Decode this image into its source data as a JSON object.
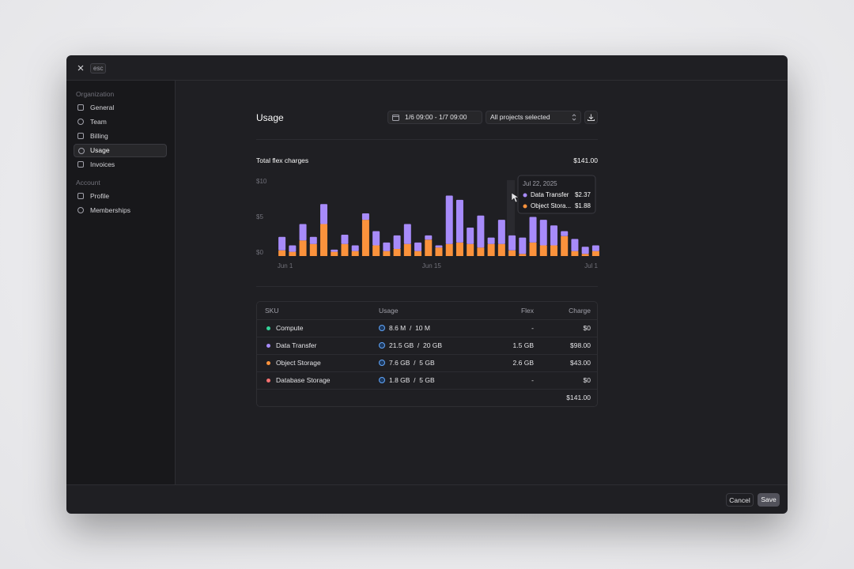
{
  "top_bar": {
    "esc": "esc"
  },
  "sidebar": {
    "sections": [
      {
        "heading": "Organization",
        "items": [
          "General",
          "Team",
          "Billing",
          "Usage",
          "Invoices"
        ]
      },
      {
        "heading": "Account",
        "items": [
          "Profile",
          "Memberships"
        ]
      }
    ],
    "active": "Usage"
  },
  "header": {
    "title": "Usage",
    "date_range": "1/6 09:00 - 1/7 09:00",
    "project_filter": "All projects selected"
  },
  "summary": {
    "label": "Total flex charges",
    "total": "$141.00"
  },
  "chart_data": {
    "type": "bar",
    "stacked": true,
    "categories": [
      "Jun 1",
      null,
      null,
      null,
      null,
      null,
      null,
      null,
      null,
      null,
      null,
      null,
      null,
      null,
      "Jun 15",
      null,
      null,
      null,
      null,
      null,
      null,
      null,
      null,
      null,
      null,
      null,
      null,
      null,
      null,
      null,
      "Jul 1"
    ],
    "series": [
      {
        "color": "#fb923c",
        "values": [
          0.8,
          0.6,
          2.2,
          1.7,
          4.5,
          0.6,
          1.7,
          0.7,
          5.1,
          1.5,
          0.7,
          1.0,
          1.7,
          0.7,
          2.3,
          1.2,
          1.7,
          1.9,
          1.7,
          1.2,
          1.7,
          1.7,
          0.8,
          0.3,
          1.9,
          1.5,
          1.5,
          2.8,
          0.7,
          0.3,
          0.7
        ]
      },
      {
        "color": "#a78bfa",
        "values": [
          1.9,
          0.9,
          2.3,
          1.0,
          2.8,
          0.3,
          1.3,
          0.8,
          0.9,
          2.0,
          1.2,
          1.9,
          2.8,
          1.2,
          0.6,
          0.3,
          6.8,
          6.0,
          2.3,
          4.5,
          0.9,
          3.4,
          2.1,
          2.3,
          3.6,
          3.6,
          2.8,
          0.7,
          1.7,
          1.0,
          0.8
        ]
      }
    ],
    "ylim": [
      0,
      10
    ],
    "yticks": [
      {
        "value": 0,
        "label": "$0"
      },
      {
        "value": 5,
        "label": "$5"
      },
      {
        "value": 10,
        "label": "$10"
      }
    ],
    "grid": false
  },
  "tooltip": {
    "date": "Jul 22, 2025",
    "items": [
      {
        "name": "Data Transfer",
        "color": "#a78bfa",
        "value": "$2.37"
      },
      {
        "name": "Object Stora...",
        "color": "#fb923c",
        "value": "$1.88"
      }
    ]
  },
  "table": {
    "columns": [
      "SKU",
      "Usage",
      "Flex",
      "Charge"
    ],
    "rows": [
      {
        "sku": "Compute",
        "color": "#34d399",
        "usage": "8.6 M  /  10 M",
        "flex": "-",
        "charge": "$0"
      },
      {
        "sku": "Data Transfer",
        "color": "#a78bfa",
        "usage": "21.5 GB  /  20 GB",
        "flex": "1.5 GB",
        "charge": "$98.00"
      },
      {
        "sku": "Object Storage",
        "color": "#fb923c",
        "usage": "7.6 GB  /  5 GB",
        "flex": "2.6 GB",
        "charge": "$43.00"
      },
      {
        "sku": "Database Storage",
        "color": "#f87171",
        "usage": "1.8 GB  /  5 GB",
        "flex": "-",
        "charge": "$0"
      }
    ],
    "total": "$141.00"
  },
  "footer": {
    "cancel": "Cancel",
    "save": "Save"
  }
}
